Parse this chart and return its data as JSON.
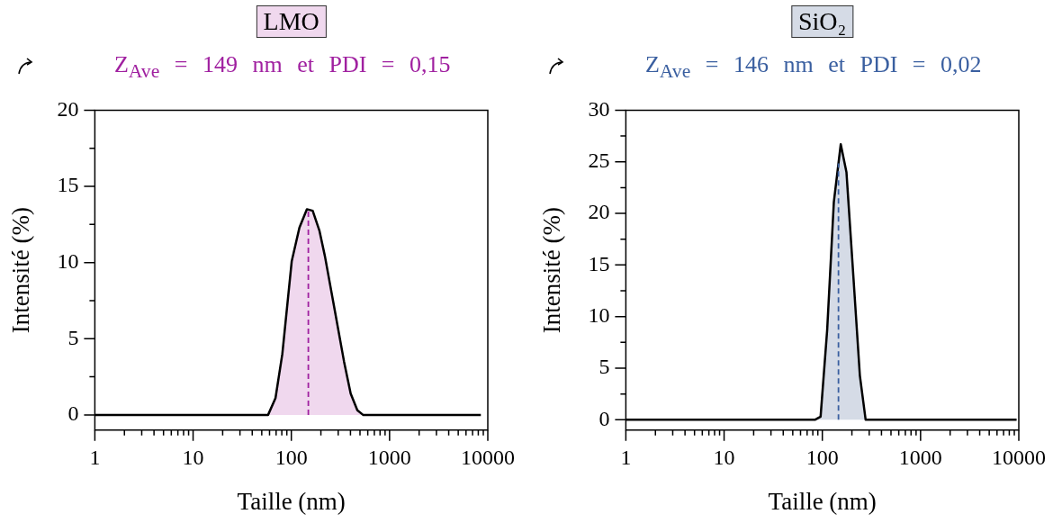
{
  "chart_data": [
    {
      "type": "area",
      "title": "LMO",
      "subtitle": "Z$_{Ave}$ = 149 nm et PDI = 0,15",
      "xlabel": "Taille (nm)",
      "ylabel": "Intensité (%)",
      "log": "x",
      "xlim": [
        1,
        10000
      ],
      "ylim": [
        -1,
        20
      ],
      "xticks": [
        1,
        {
          "value": 2,
          "label": null
        },
        {
          "value": 3,
          "label": null
        },
        {
          "value": 4,
          "label": null
        },
        {
          "value": 5,
          "label": null
        },
        {
          "value": 6,
          "label": null
        },
        {
          "value": 7,
          "label": null
        },
        {
          "value": 8,
          "label": null
        },
        {
          "value": 9,
          "label": null
        },
        10,
        {
          "value": 20,
          "label": null
        },
        {
          "value": 30,
          "label": null
        },
        {
          "value": 40,
          "label": null
        },
        {
          "value": 50,
          "label": null
        },
        {
          "value": 60,
          "label": null
        },
        {
          "value": 70,
          "label": null
        },
        {
          "value": 80,
          "label": null
        },
        {
          "value": 90,
          "label": null
        },
        100,
        {
          "value": 200,
          "label": null
        },
        {
          "value": 300,
          "label": null
        },
        {
          "value": 400,
          "label": null
        },
        {
          "value": 500,
          "label": null
        },
        {
          "value": 600,
          "label": null
        },
        {
          "value": 700,
          "label": null
        },
        {
          "value": 800,
          "label": null
        },
        {
          "value": 900,
          "label": null
        },
        1000,
        {
          "value": 2000,
          "label": null
        },
        {
          "value": 3000,
          "label": null
        },
        {
          "value": 4000,
          "label": null
        },
        {
          "value": 5000,
          "label": null
        },
        {
          "value": 6000,
          "label": null
        },
        {
          "value": 7000,
          "label": null
        },
        {
          "value": 8000,
          "label": null
        },
        {
          "value": 9000,
          "label": null
        },
        10000
      ],
      "yticks": [
        0,
        {
          "value": 2.5,
          "label": null
        },
        5,
        {
          "value": 7.5,
          "label": null
        },
        10,
        {
          "value": 12.5,
          "label": null
        },
        15,
        {
          "value": 17.5,
          "label": null
        },
        20
      ],
      "series": [
        {
          "color": "#f0d8ee",
          "x": [
            1,
            58,
            69,
            81,
            101,
            121,
            144,
            165,
            193,
            220,
            269,
            344,
            402,
            470,
            537,
            8500
          ],
          "values": [
            0,
            0,
            1.1,
            4.0,
            10.1,
            12.3,
            13.5,
            13.4,
            12.1,
            10.4,
            7.3,
            3.5,
            1.4,
            0.3,
            0,
            0
          ]
        }
      ],
      "ref_lines": [
        {
          "axis": "x",
          "value": 149,
          "color": "#a020a0",
          "line_style": "dashed"
        }
      ]
    },
    {
      "type": "area",
      "title": "SiO₂",
      "subtitle": "Z$_{Ave}$ = 146 nm et PDI = 0,02",
      "xlabel": "Taille (nm)",
      "ylabel": "Intensité (%)",
      "log": "x",
      "xlim": [
        1,
        10000
      ],
      "ylim": [
        -1,
        30
      ],
      "xticks": [
        1,
        {
          "value": 2,
          "label": null
        },
        {
          "value": 3,
          "label": null
        },
        {
          "value": 4,
          "label": null
        },
        {
          "value": 5,
          "label": null
        },
        {
          "value": 6,
          "label": null
        },
        {
          "value": 7,
          "label": null
        },
        {
          "value": 8,
          "label": null
        },
        {
          "value": 9,
          "label": null
        },
        10,
        {
          "value": 20,
          "label": null
        },
        {
          "value": 30,
          "label": null
        },
        {
          "value": 40,
          "label": null
        },
        {
          "value": 50,
          "label": null
        },
        {
          "value": 60,
          "label": null
        },
        {
          "value": 70,
          "label": null
        },
        {
          "value": 80,
          "label": null
        },
        {
          "value": 90,
          "label": null
        },
        100,
        {
          "value": 200,
          "label": null
        },
        {
          "value": 300,
          "label": null
        },
        {
          "value": 400,
          "label": null
        },
        {
          "value": 500,
          "label": null
        },
        {
          "value": 600,
          "label": null
        },
        {
          "value": 700,
          "label": null
        },
        {
          "value": 800,
          "label": null
        },
        {
          "value": 900,
          "label": null
        },
        1000,
        {
          "value": 2000,
          "label": null
        },
        {
          "value": 3000,
          "label": null
        },
        {
          "value": 4000,
          "label": null
        },
        {
          "value": 5000,
          "label": null
        },
        {
          "value": 6000,
          "label": null
        },
        {
          "value": 7000,
          "label": null
        },
        {
          "value": 8000,
          "label": null
        },
        {
          "value": 9000,
          "label": null
        },
        10000
      ],
      "yticks": [
        0,
        {
          "value": 2.5,
          "label": null
        },
        5,
        {
          "value": 7.5,
          "label": null
        },
        10,
        {
          "value": 12.5,
          "label": null
        },
        15,
        {
          "value": 17.5,
          "label": null
        },
        20,
        {
          "value": 22.5,
          "label": null
        },
        25,
        {
          "value": 27.5,
          "label": null
        },
        30
      ],
      "series": [
        {
          "color": "#d5dbe6",
          "x": [
            1,
            84,
            96,
            112,
            131,
            154,
            176,
            206,
            241,
            276,
            9500
          ],
          "values": [
            0,
            0,
            0.3,
            8.7,
            21.1,
            26.7,
            24.0,
            14.2,
            4.3,
            0,
            0
          ]
        }
      ],
      "ref_lines": [
        {
          "axis": "x",
          "value": 146,
          "color": "#3a5fa0",
          "line_style": "dashed"
        }
      ]
    }
  ]
}
